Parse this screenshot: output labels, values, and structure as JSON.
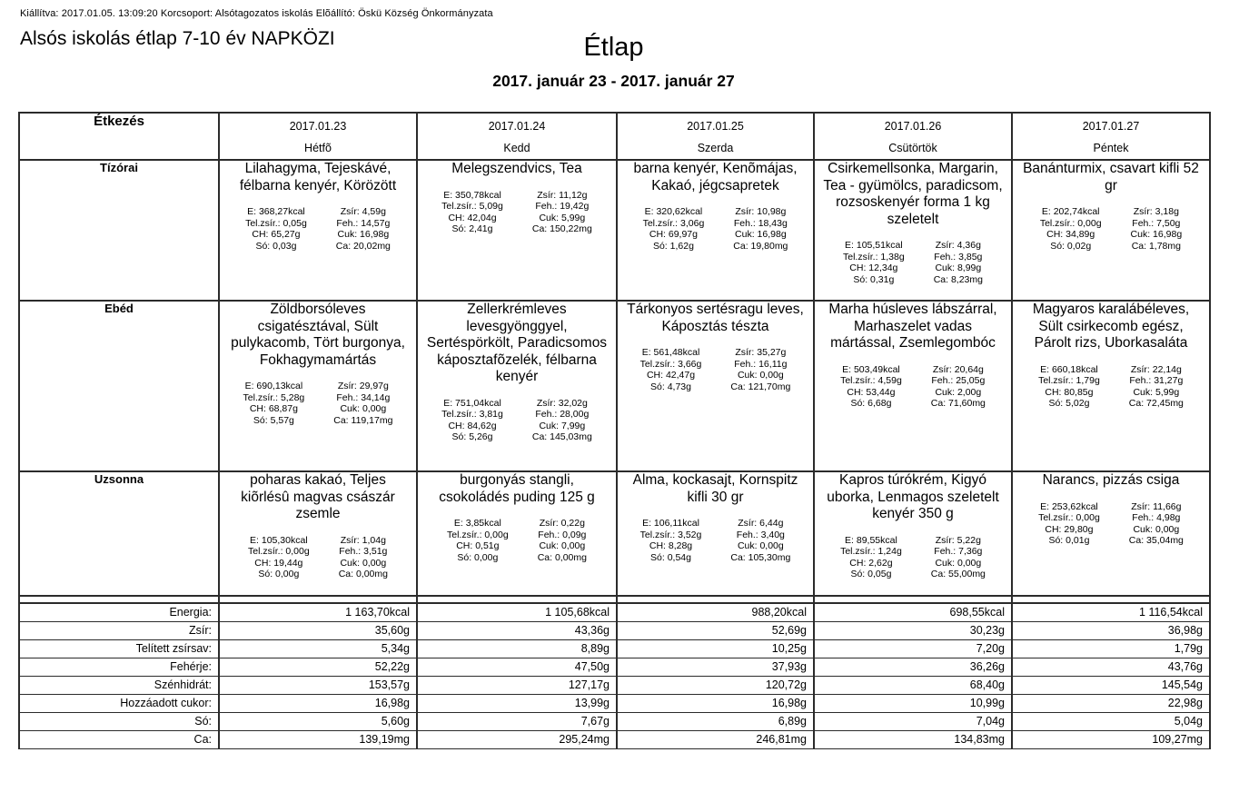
{
  "header": {
    "meta_line": "Kiállítva: 2017.01.05. 13:09:20 Korcsoport: Alsótagozatos iskolás Elõállító: Öskü Község Önkormányzata",
    "left_title": "Alsós iskolás étlap 7-10 év NAPKÖZI",
    "title": "Étlap",
    "date_range": "2017. január 23 - 2017. január 27"
  },
  "table": {
    "corner_label": "Étkezés",
    "day_headers": [
      {
        "date": "2017.01.23",
        "day": "Hétfõ"
      },
      {
        "date": "2017.01.24",
        "day": "Kedd"
      },
      {
        "date": "2017.01.25",
        "day": "Szerda"
      },
      {
        "date": "2017.01.26",
        "day": "Csütörtök"
      },
      {
        "date": "2017.01.27",
        "day": "Péntek"
      }
    ],
    "meal_rows": [
      {
        "label": "Tízórai",
        "cells": [
          {
            "menu": "Lilahagyma, Tejeskávé, félbarna kenyér, Körözött",
            "nutrition_left": [
              "E: 368,27kcal",
              "Tel.zsír.: 0,05g",
              "CH: 65,27g",
              "Só: 0,03g"
            ],
            "nutrition_right": [
              "Zsír: 4,59g",
              "Feh.: 14,57g",
              "Cuk: 16,98g",
              "Ca: 20,02mg"
            ]
          },
          {
            "menu": "Melegszendvics, Tea",
            "nutrition_left": [
              "E: 350,78kcal",
              "Tel.zsír.: 5,09g",
              "CH: 42,04g",
              "Só: 2,41g"
            ],
            "nutrition_right": [
              "Zsír: 11,12g",
              "Feh.: 19,42g",
              "Cuk: 5,99g",
              "Ca: 150,22mg"
            ]
          },
          {
            "menu": "barna kenyér, Kenõmájas, Kakaó, jégcsapretek",
            "nutrition_left": [
              "E: 320,62kcal",
              "Tel.zsír.: 3,06g",
              "CH: 69,97g",
              "Só: 1,62g"
            ],
            "nutrition_right": [
              "Zsír: 10,98g",
              "Feh.: 18,43g",
              "Cuk: 16,98g",
              "Ca: 19,80mg"
            ]
          },
          {
            "menu": "Csirkemellsonka, Margarin, Tea - gyümölcs, paradicsom, rozsoskenyér forma 1 kg szeletelt",
            "nutrition_left": [
              "E: 105,51kcal",
              "Tel.zsír.: 1,38g",
              "CH: 12,34g",
              "Só: 0,31g"
            ],
            "nutrition_right": [
              "Zsír: 4,36g",
              "Feh.: 3,85g",
              "Cuk: 8,99g",
              "Ca: 8,23mg"
            ]
          },
          {
            "menu": "Banánturmix, csavart kifli 52 gr",
            "nutrition_left": [
              "E: 202,74kcal",
              "Tel.zsír.: 0,00g",
              "CH: 34,89g",
              "Só: 0,02g"
            ],
            "nutrition_right": [
              "Zsír: 3,18g",
              "Feh.: 7,50g",
              "Cuk: 16,98g",
              "Ca: 1,78mg"
            ]
          }
        ]
      },
      {
        "label": "Ebéd",
        "cells": [
          {
            "menu": "Zöldborsóleves csigatésztával, Sült pulykacomb, Tört burgonya, Fokhagymamártás",
            "nutrition_left": [
              "E: 690,13kcal",
              "Tel.zsír.: 5,28g",
              "CH: 68,87g",
              "Só: 5,57g"
            ],
            "nutrition_right": [
              "Zsír: 29,97g",
              "Feh.: 34,14g",
              "Cuk: 0,00g",
              "Ca: 119,17mg"
            ]
          },
          {
            "menu": "Zellerkrémleves levesgyönggyel, Sertéspörkölt, Paradicsomos káposztafõzelék, félbarna kenyér",
            "nutrition_left": [
              "E: 751,04kcal",
              "Tel.zsír.: 3,81g",
              "CH: 84,62g",
              "Só: 5,26g"
            ],
            "nutrition_right": [
              "Zsír: 32,02g",
              "Feh.: 28,00g",
              "Cuk: 7,99g",
              "Ca: 145,03mg"
            ]
          },
          {
            "menu": "Tárkonyos sertésragu leves, Káposztás tészta",
            "nutrition_left": [
              "E: 561,48kcal",
              "Tel.zsír.: 3,66g",
              "CH: 42,47g",
              "Só: 4,73g"
            ],
            "nutrition_right": [
              "Zsír: 35,27g",
              "Feh.: 16,11g",
              "Cuk: 0,00g",
              "Ca: 121,70mg"
            ]
          },
          {
            "menu": "Marha húsleves lábszárral, Marhaszelet vadas mártással, Zsemlegombóc",
            "nutrition_left": [
              "E: 503,49kcal",
              "Tel.zsír.: 4,59g",
              "CH: 53,44g",
              "Só: 6,68g"
            ],
            "nutrition_right": [
              "Zsír: 20,64g",
              "Feh.: 25,05g",
              "Cuk: 2,00g",
              "Ca: 71,60mg"
            ]
          },
          {
            "menu": "Magyaros karalábéleves, Sült csirkecomb egész, Párolt rizs, Uborkasaláta",
            "nutrition_left": [
              "E: 660,18kcal",
              "Tel.zsír.: 1,79g",
              "CH: 80,85g",
              "Só: 5,02g"
            ],
            "nutrition_right": [
              "Zsír: 22,14g",
              "Feh.: 31,27g",
              "Cuk: 5,99g",
              "Ca: 72,45mg"
            ]
          }
        ]
      },
      {
        "label": "Uzsonna",
        "cells": [
          {
            "menu": "poharas kakaó, Teljes kiõrlésû magvas császár zsemle",
            "nutrition_left": [
              "E: 105,30kcal",
              "Tel.zsír.: 0,00g",
              "CH: 19,44g",
              "Só: 0,00g"
            ],
            "nutrition_right": [
              "Zsír: 1,04g",
              "Feh.: 3,51g",
              "Cuk: 0,00g",
              "Ca: 0,00mg"
            ]
          },
          {
            "menu": "burgonyás stangli, csokoládés puding 125 g",
            "nutrition_left": [
              "E: 3,85kcal",
              "Tel.zsír.: 0,00g",
              "CH: 0,51g",
              "Só: 0,00g"
            ],
            "nutrition_right": [
              "Zsír: 0,22g",
              "Feh.: 0,09g",
              "Cuk: 0,00g",
              "Ca: 0,00mg"
            ]
          },
          {
            "menu": "Alma, kockasajt, Kornspitz kifli 30 gr",
            "nutrition_left": [
              "E: 106,11kcal",
              "Tel.zsír.: 3,52g",
              "CH: 8,28g",
              "Só: 0,54g"
            ],
            "nutrition_right": [
              "Zsír: 6,44g",
              "Feh.: 3,40g",
              "Cuk: 0,00g",
              "Ca: 105,30mg"
            ]
          },
          {
            "menu": "Kapros túrókrém, Kigyó uborka, Lenmagos szeletelt kenyér 350 g",
            "nutrition_left": [
              "E: 89,55kcal",
              "Tel.zsír.: 1,24g",
              "CH: 2,62g",
              "Só: 0,05g"
            ],
            "nutrition_right": [
              "Zsír: 5,22g",
              "Feh.: 7,36g",
              "Cuk: 0,00g",
              "Ca: 55,00mg"
            ]
          },
          {
            "menu": "Narancs, pizzás csiga",
            "nutrition_left": [
              "E: 253,62kcal",
              "Tel.zsír.: 0,00g",
              "CH: 29,80g",
              "Só: 0,01g"
            ],
            "nutrition_right": [
              "Zsír: 11,66g",
              "Feh.: 4,98g",
              "Cuk: 0,00g",
              "Ca: 35,04mg"
            ]
          }
        ]
      }
    ],
    "summary_rows": [
      {
        "label": "Energia:",
        "values": [
          "1 163,70kcal",
          "1 105,68kcal",
          "988,20kcal",
          "698,55kcal",
          "1 116,54kcal"
        ]
      },
      {
        "label": "Zsír:",
        "values": [
          "35,60g",
          "43,36g",
          "52,69g",
          "30,23g",
          "36,98g"
        ]
      },
      {
        "label": "Telített zsírsav:",
        "values": [
          "5,34g",
          "8,89g",
          "10,25g",
          "7,20g",
          "1,79g"
        ]
      },
      {
        "label": "Fehérje:",
        "values": [
          "52,22g",
          "47,50g",
          "37,93g",
          "36,26g",
          "43,76g"
        ]
      },
      {
        "label": "Szénhidrát:",
        "values": [
          "153,57g",
          "127,17g",
          "120,72g",
          "68,40g",
          "145,54g"
        ]
      },
      {
        "label": "Hozzáadott cukor:",
        "values": [
          "16,98g",
          "13,99g",
          "16,98g",
          "10,99g",
          "22,98g"
        ]
      },
      {
        "label": "Só:",
        "values": [
          "5,60g",
          "7,67g",
          "6,89g",
          "7,04g",
          "5,04g"
        ]
      },
      {
        "label": "Ca:",
        "values": [
          "139,19mg",
          "295,24mg",
          "246,81mg",
          "134,83mg",
          "109,27mg"
        ]
      }
    ]
  }
}
